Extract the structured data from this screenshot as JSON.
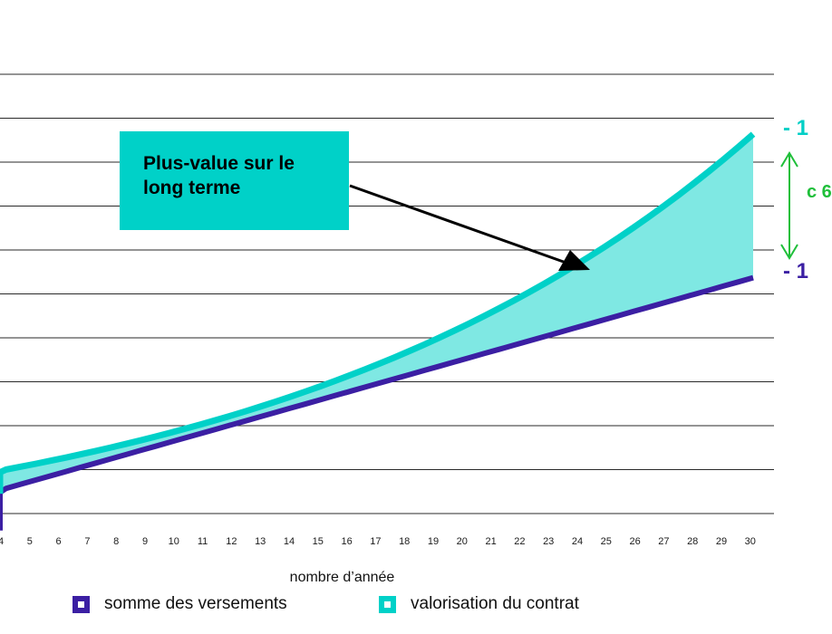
{
  "chart_data": {
    "type": "area",
    "title": "",
    "xlabel": "nombre d’année",
    "ylabel": "",
    "x_visible": [
      4,
      5,
      6,
      7,
      8,
      9,
      10,
      11,
      12,
      13,
      14,
      15,
      16,
      17,
      18,
      19,
      20,
      21,
      22,
      23,
      24,
      25,
      26,
      27,
      28,
      29,
      30
    ],
    "x_ticks": [
      "4",
      "5",
      "6",
      "7",
      "8",
      "9",
      "10",
      "11",
      "12",
      "13",
      "14",
      "15",
      "16",
      "17",
      "18",
      "19",
      "20",
      "21",
      "22",
      "23",
      "24",
      "25",
      "26",
      "27",
      "28",
      "29",
      "30"
    ],
    "grid": true,
    "y_gridlines": 11,
    "series": [
      {
        "name": "somme des versements",
        "color": "#3b1fa3",
        "shape": "linear",
        "start": {
          "x": 4,
          "y": 0.54
        },
        "end": {
          "x": 30,
          "y": 5.35
        }
      },
      {
        "name": "valorisation du contrat",
        "color": "#00d1c8",
        "shape": "compound",
        "start": {
          "x": 4,
          "y": 0.98
        },
        "end": {
          "x": 30,
          "y": 8.58
        }
      }
    ],
    "fill_between": {
      "color": "#7fe8e3",
      "meaning": "plus-value"
    },
    "legend_position": "bottom",
    "annotation": {
      "text": "Plus-value sur le long terme",
      "color": "#00d1c8"
    },
    "right_markers": {
      "top_text": "- 1",
      "bottom_text": "- 1",
      "gap_text": "c 6",
      "gap_color": "#1fbf3a"
    }
  },
  "legend": {
    "item1": "somme des versements",
    "item2": "valorisation du contrat"
  }
}
